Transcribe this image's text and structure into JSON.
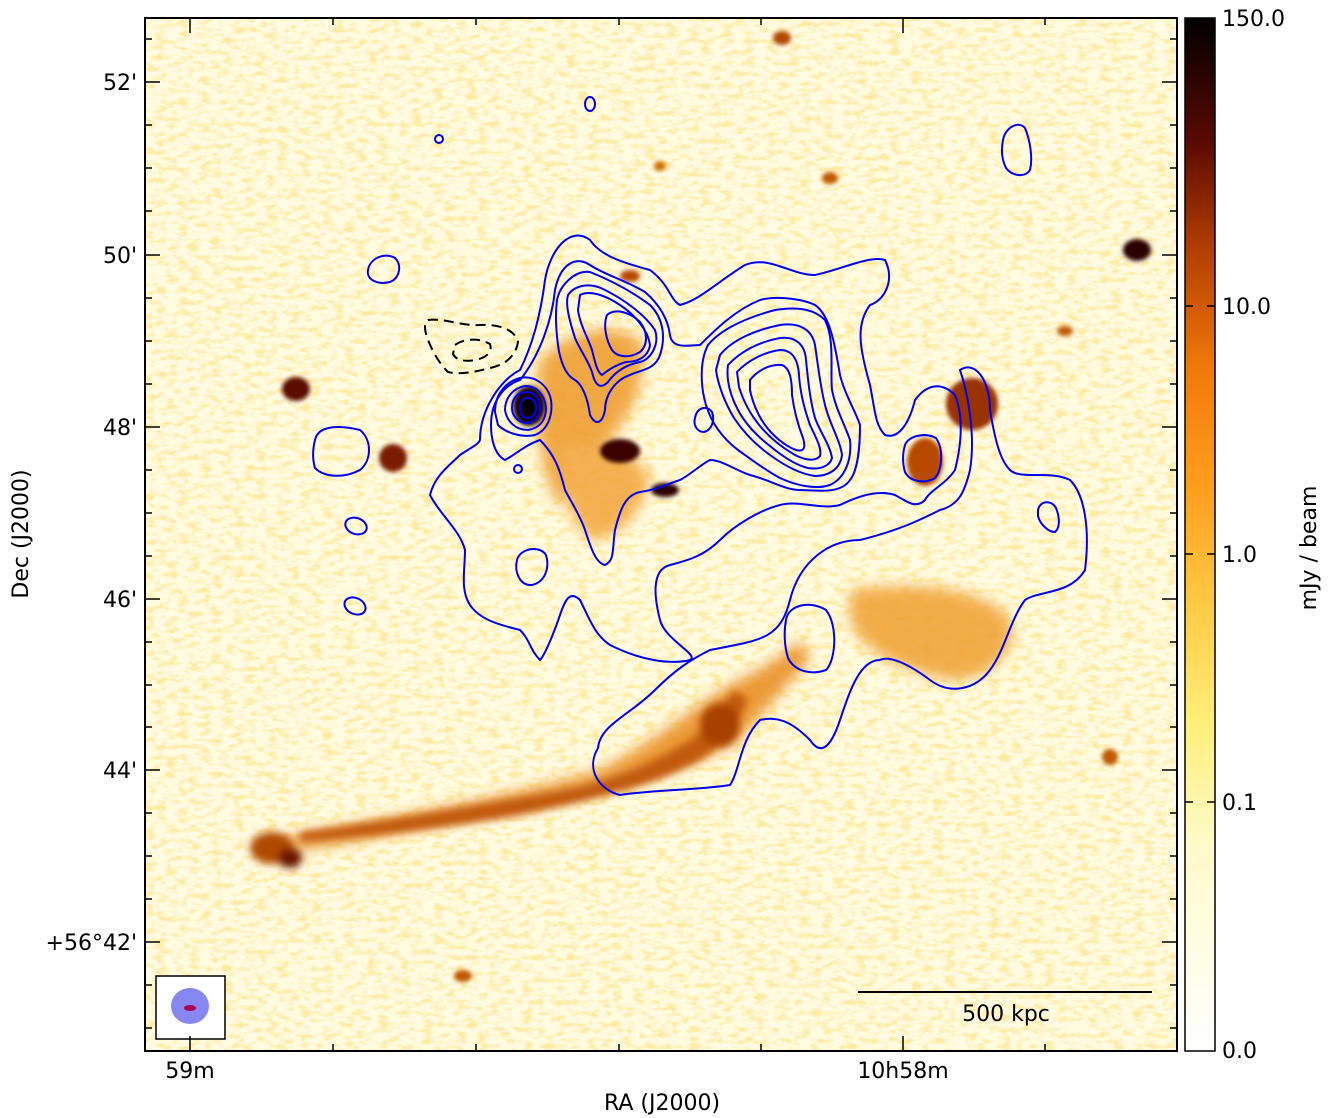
{
  "figure": {
    "xlabel": "RA (J2000)",
    "ylabel": "Dec (J2000)",
    "x_ticks": [
      "59m",
      "10h58m"
    ],
    "y_ticks": [
      "52'",
      "50'",
      "48'",
      "46'",
      "44'",
      "+56°42'"
    ],
    "scale_bar_label": "500 kpc"
  },
  "colorbar": {
    "label": "mJy / beam",
    "ticks": [
      "150.0",
      "10.0",
      "1.0",
      "0.1",
      "0.0"
    ],
    "colormap": [
      "#ffffff",
      "#fff6b8",
      "#ffd84a",
      "#ff9a1a",
      "#c84a00",
      "#6a1000",
      "#000000"
    ]
  },
  "colors": {
    "contour_positive": "#0000ee",
    "contour_negative": "#000000",
    "beam_fill": "#7a7af0",
    "beam_core": "#aa0055"
  }
}
